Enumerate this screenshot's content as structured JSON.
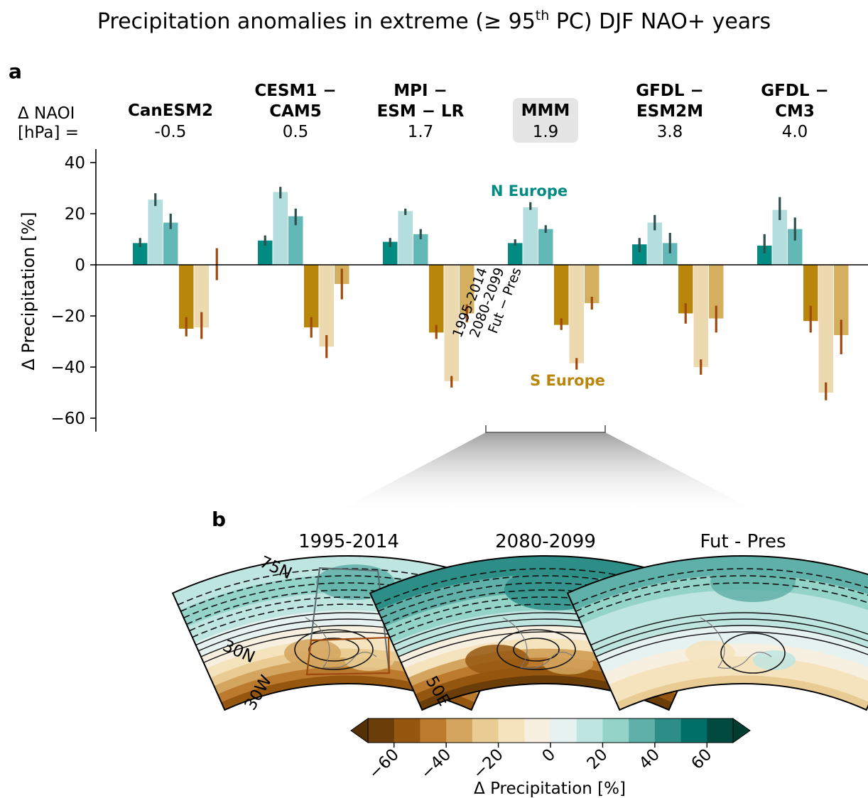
{
  "figure": {
    "title_main": "Precipitation anomalies in extreme (≥ 95",
    "title_sup": "th",
    "title_end": " PC) DJF NAO+ years",
    "panel_a_label": "a",
    "panel_b_label": "b"
  },
  "header": {
    "naoi_line1": "Δ NAOI",
    "naoi_line2": "[hPa] ="
  },
  "chart_data": {
    "type": "bar",
    "ylabel": "Δ  Precipitation [%]",
    "ylim": [
      -65,
      45
    ],
    "yticks": [
      40,
      20,
      0,
      -20,
      -40,
      -60
    ],
    "ytick_labels": [
      "40",
      "20",
      "0",
      "−20",
      "−40",
      "−60"
    ],
    "models": [
      {
        "name_lines": [
          "CanESM2"
        ],
        "naoi": "-0.5",
        "highlight": false
      },
      {
        "name_lines": [
          "CESM1 −",
          "CAM5"
        ],
        "naoi": "0.5",
        "highlight": false
      },
      {
        "name_lines": [
          "MPI −",
          "ESM − LR"
        ],
        "naoi": "1.7",
        "highlight": false
      },
      {
        "name_lines": [
          "MMM"
        ],
        "naoi": "1.9",
        "highlight": true
      },
      {
        "name_lines": [
          "GFDL −",
          "ESM2M"
        ],
        "naoi": "3.8",
        "highlight": false
      },
      {
        "name_lines": [
          "GFDL −",
          "CM3"
        ],
        "naoi": "4.0",
        "highlight": false
      }
    ],
    "periods": [
      "1995-2014",
      "2080-2099",
      "Fut − Pres"
    ],
    "series": [
      {
        "name": "N Europe",
        "region": "north",
        "values": [
          [
            8.5,
            25.5,
            16.5
          ],
          [
            9.5,
            28.5,
            19.0
          ],
          [
            9.0,
            21.0,
            12.0
          ],
          [
            8.5,
            22.5,
            14.0
          ],
          [
            8.0,
            16.5,
            8.5
          ],
          [
            7.5,
            21.5,
            14.0
          ]
        ],
        "err": [
          [
            [
              7,
              10.5
            ],
            [
              23,
              28
            ],
            [
              14,
              20
            ]
          ],
          [
            [
              7.5,
              11.5
            ],
            [
              26,
              30.5
            ],
            [
              15.5,
              22
            ]
          ],
          [
            [
              7,
              10.5
            ],
            [
              19.5,
              22
            ],
            [
              10,
              14
            ]
          ],
          [
            [
              7.5,
              10
            ],
            [
              21.5,
              24.5
            ],
            [
              12.5,
              15.5
            ]
          ],
          [
            [
              5,
              10.5
            ],
            [
              13.5,
              19.5
            ],
            [
              4.5,
              12.5
            ]
          ],
          [
            [
              4.5,
              12
            ],
            [
              17.5,
              26.5
            ],
            [
              9.5,
              18.5
            ]
          ]
        ]
      },
      {
        "name": "S Europe",
        "region": "south",
        "values": [
          [
            -25.0,
            -24.5,
            null
          ],
          [
            -24.5,
            -32.0,
            -7.5
          ],
          [
            -26.5,
            -45.5,
            -19.0
          ],
          [
            -23.5,
            -38.5,
            -15.0
          ],
          [
            -19.0,
            -40.0,
            -21.0
          ],
          [
            -22.0,
            -50.0,
            -27.5
          ]
        ],
        "err": [
          [
            [
              -28,
              -20.5
            ],
            [
              -29,
              -18.5
            ],
            [
              -6,
              6.5
            ]
          ],
          [
            [
              -28.5,
              -20.5
            ],
            [
              -36.5,
              -27.5
            ],
            [
              -13.5,
              -1.5
            ]
          ],
          [
            [
              -29,
              -23.5
            ],
            [
              -48,
              -43.5
            ],
            [
              -22.5,
              -15.5
            ]
          ],
          [
            [
              -25.5,
              -21
            ],
            [
              -41,
              -36.5
            ],
            [
              -17.5,
              -12.5
            ]
          ],
          [
            [
              -23,
              -15
            ],
            [
              -43,
              -37
            ],
            [
              -26.5,
              -16
            ]
          ],
          [
            [
              -26.5,
              -16
            ],
            [
              -53,
              -46
            ],
            [
              -35,
              -21.5
            ]
          ]
        ]
      }
    ],
    "colors": {
      "north": [
        "#018b82",
        "#b3dedd",
        "#61b8b7"
      ],
      "south": [
        "#b8860a",
        "#ecd9b0",
        "#d4af5d"
      ],
      "north_err": "#2f4f4f",
      "south_err": "#a0490d",
      "north_label": "#018b82",
      "south_label": "#b8860a"
    }
  },
  "maps": [
    {
      "title": "1995-2014"
    },
    {
      "title": "2080-2099"
    },
    {
      "title": "Fut - Pres"
    }
  ],
  "map_axis_labels": {
    "lat_high": "75N",
    "lat_low": "30N",
    "lon_west": "30W",
    "lon_east": "50E"
  },
  "colorbar": {
    "label": "Δ  Precipitation [%]",
    "ticks": [
      "−60",
      "−40",
      "−20",
      "0",
      "20",
      "40",
      "60"
    ],
    "tick_values": [
      -60,
      -40,
      -20,
      0,
      20,
      40,
      60
    ],
    "bins": [
      -70,
      -60,
      -50,
      -40,
      -30,
      -20,
      -10,
      0,
      10,
      20,
      30,
      40,
      50,
      60,
      70
    ],
    "colors": [
      "#6b3d08",
      "#955710",
      "#bc7a2e",
      "#d3a55e",
      "#e9cc93",
      "#f5e3bd",
      "#f7f0e1",
      "#e5f2f0",
      "#bfe5e0",
      "#93d3c8",
      "#5fb0a8",
      "#2d8e87",
      "#006f68",
      "#004a40"
    ],
    "extend_low": "#543005",
    "extend_high": "#003c30"
  }
}
